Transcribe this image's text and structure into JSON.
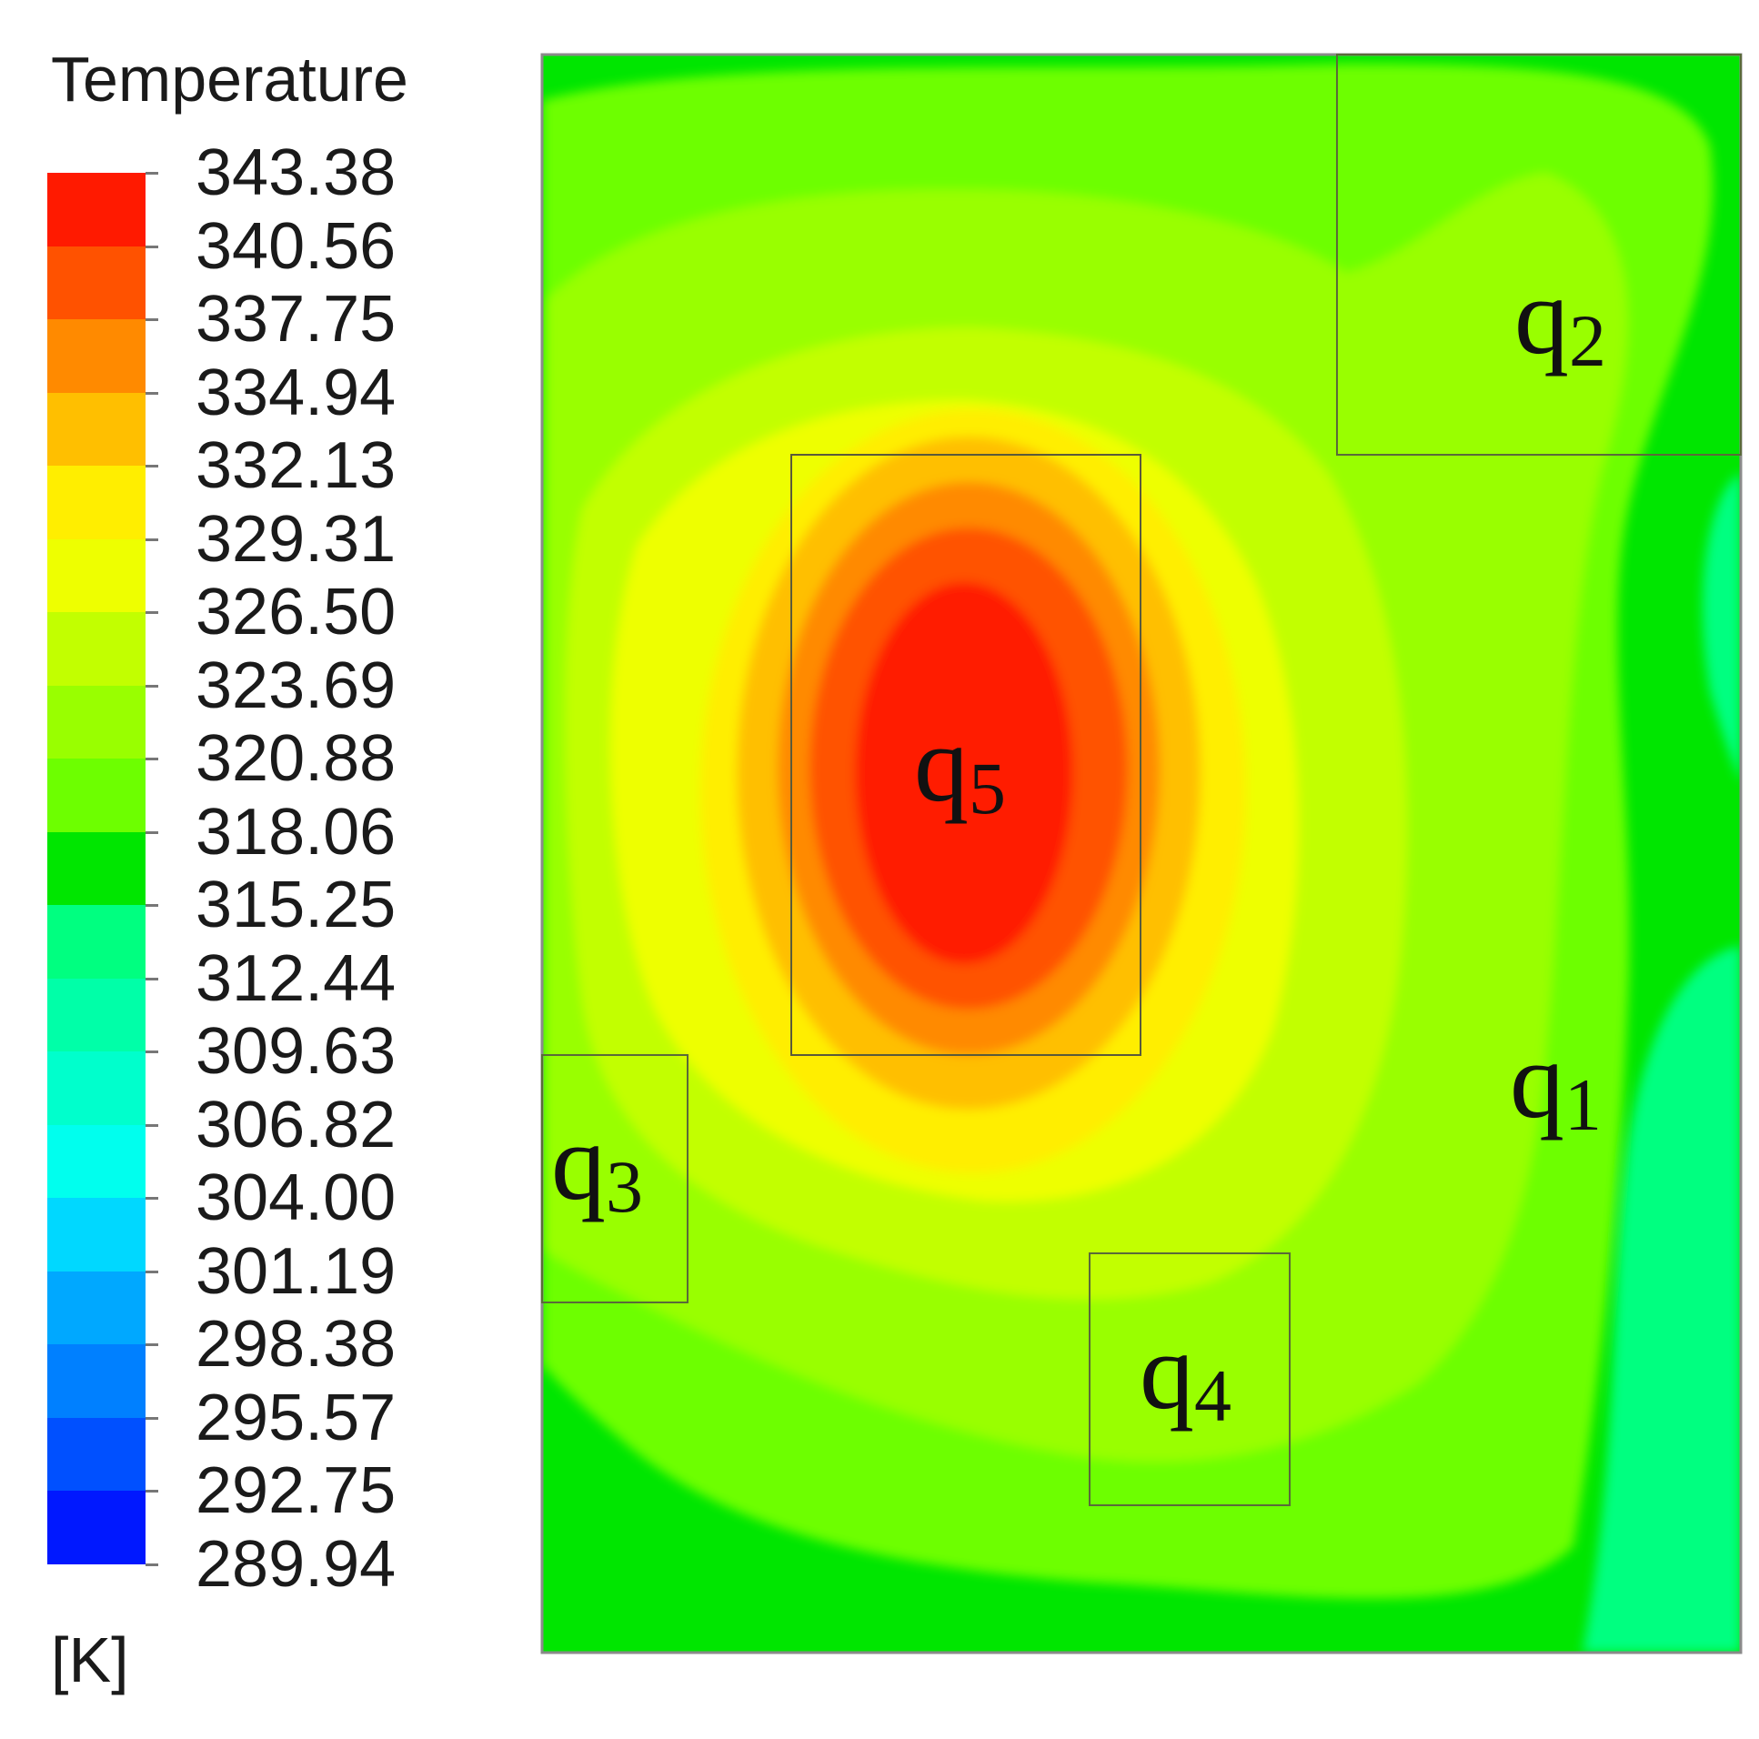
{
  "legend": {
    "title": "Temperature",
    "unit": "[K]",
    "levels": [
      "343.38",
      "340.56",
      "337.75",
      "334.94",
      "332.13",
      "329.31",
      "326.50",
      "323.69",
      "320.88",
      "318.06",
      "315.25",
      "312.44",
      "309.63",
      "306.82",
      "304.00",
      "301.19",
      "298.38",
      "295.57",
      "292.75",
      "289.94"
    ],
    "colors": [
      "#ff1a00",
      "#ff5200",
      "#ff8a00",
      "#ffbf00",
      "#ffee00",
      "#eeff00",
      "#c2ff00",
      "#99ff00",
      "#6dff00",
      "#00e600",
      "#00ff80",
      "#00ffa8",
      "#00ffcc",
      "#00ffee",
      "#00d8ff",
      "#00a8ff",
      "#0080ff",
      "#0050ff",
      "#0018ff"
    ]
  },
  "regions": [
    {
      "id": "q1",
      "letter": "q",
      "index": "1",
      "framed": false
    },
    {
      "id": "q2",
      "letter": "q",
      "index": "2",
      "framed": true
    },
    {
      "id": "q3",
      "letter": "q",
      "index": "3",
      "framed": true
    },
    {
      "id": "q4",
      "letter": "q",
      "index": "4",
      "framed": true
    },
    {
      "id": "q5",
      "letter": "q",
      "index": "5",
      "framed": true
    }
  ],
  "chart_data": {
    "type": "heatmap",
    "title": "Temperature",
    "unit": "K",
    "colorbar_levels": [
      343.38,
      340.56,
      337.75,
      334.94,
      332.13,
      329.31,
      326.5,
      323.69,
      320.88,
      318.06,
      315.25,
      312.44,
      309.63,
      306.82,
      304.0,
      301.19,
      298.38,
      295.57,
      292.75,
      289.94
    ],
    "colorbar_range": [
      289.94,
      343.38
    ],
    "hotspot_region": "q5",
    "hotspot_max": 343.38,
    "colormap": "rainbow (blue to red)"
  }
}
